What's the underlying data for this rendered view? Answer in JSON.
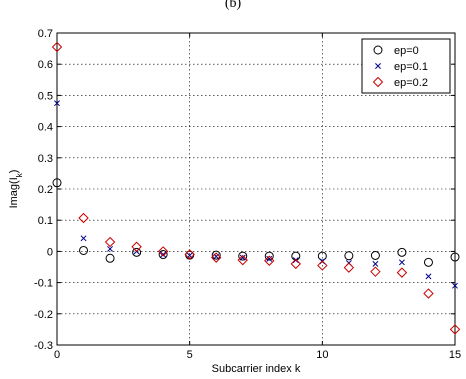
{
  "chart_data": {
    "type": "scatter",
    "subtitle": "(b)",
    "xlabel": "Subcarrier index k",
    "ylabel": "Imag(I",
    "ylabel_sub": "k",
    "ylabel_close": ")",
    "xlim": [
      0,
      15
    ],
    "ylim": [
      -0.3,
      0.7
    ],
    "xticks": [
      "0",
      "5",
      "10",
      "15"
    ],
    "yticks": [
      "-0.3",
      "-0.2",
      "-0.1",
      "0",
      "0.1",
      "0.2",
      "0.3",
      "0.4",
      "0.5",
      "0.6",
      "0.7"
    ],
    "grid": true,
    "legend_position": "top-right",
    "x": [
      0,
      1,
      2,
      3,
      4,
      5,
      6,
      7,
      8,
      9,
      10,
      11,
      12,
      13,
      14,
      15
    ],
    "series": [
      {
        "name": "ep=0",
        "marker": "circle",
        "color": "#000000",
        "values": [
          0.22,
          0.003,
          -0.022,
          -0.003,
          -0.01,
          -0.012,
          -0.012,
          -0.015,
          -0.015,
          -0.015,
          -0.015,
          -0.014,
          -0.013,
          -0.003,
          -0.035,
          -0.018
        ]
      },
      {
        "name": "ep=0.1",
        "marker": "x",
        "color": "#00008b",
        "values": [
          0.475,
          0.042,
          0.008,
          0.0,
          -0.01,
          -0.013,
          -0.016,
          -0.02,
          -0.024,
          -0.028,
          -0.032,
          -0.037,
          -0.04,
          -0.035,
          -0.08,
          -0.11
        ]
      },
      {
        "name": "ep=0.2",
        "marker": "diamond",
        "color": "#cc0000",
        "values": [
          0.655,
          0.107,
          0.03,
          0.015,
          0.0,
          -0.01,
          -0.02,
          -0.028,
          -0.03,
          -0.04,
          -0.045,
          -0.052,
          -0.065,
          -0.068,
          -0.135,
          -0.25
        ]
      }
    ]
  }
}
